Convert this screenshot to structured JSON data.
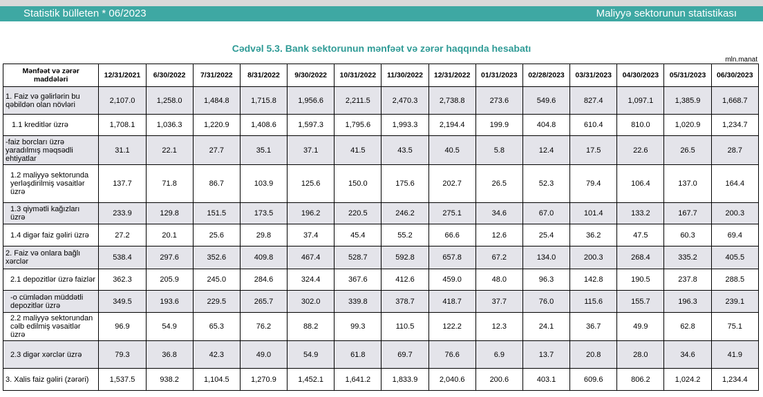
{
  "header": {
    "left": "Statistik bülleten * 06/2023",
    "right": "Maliyyə sektorunun statistikası"
  },
  "title": "Cədvəl 5.3. Bank sektorunun mənfəət və zərər haqqında hesabatı",
  "unit": "mln.manat",
  "table": {
    "columns": [
      "Mənfəət və zərər maddələri",
      "12/31/2021",
      "6/30/2022",
      "7/31/2022",
      "8/31/2022",
      "9/30/2022",
      "10/31/2022",
      "11/30/2022",
      "12/31/2022",
      "01/31/2023",
      "02/28/2023",
      "03/31/2023",
      "04/30/2023",
      "05/31/2023",
      "06/30/2023"
    ],
    "rows": [
      {
        "label": "1. Faiz və gəlirlərin bu qəbildən olan növləri",
        "values": [
          "2,107.0",
          "1,258.0",
          "1,484.8",
          "1,715.8",
          "1,956.6",
          "2,211.5",
          "2,470.3",
          "2,738.8",
          "273.6",
          "549.6",
          "827.4",
          "1,097.1",
          "1,385.9",
          "1,668.7"
        ]
      },
      {
        "label": "1.1 kreditlər üzrə",
        "values": [
          "1,708.1",
          "1,036.3",
          "1,220.9",
          "1,408.6",
          "1,597.3",
          "1,795.6",
          "1,993.3",
          "2,194.4",
          "199.9",
          "404.8",
          "610.4",
          "810.0",
          "1,020.9",
          "1,234.7"
        ]
      },
      {
        "label": "-faiz borcları üzrə yaradılmış məqsədli ehtiyatlar",
        "values": [
          "31.1",
          "22.1",
          "27.7",
          "35.1",
          "37.1",
          "41.5",
          "43.5",
          "40.5",
          "5.8",
          "12.4",
          "17.5",
          "22.6",
          "26.5",
          "28.7"
        ]
      },
      {
        "label": "1.2 maliyyə sektorunda yerləşdirilmiş vəsaitlər üzrə",
        "values": [
          "137.7",
          "71.8",
          "86.7",
          "103.9",
          "125.6",
          "150.0",
          "175.6",
          "202.7",
          "26.5",
          "52.3",
          "79.4",
          "106.4",
          "137.0",
          "164.4"
        ]
      },
      {
        "label": "1.3 qiymətli kağızları üzrə",
        "values": [
          "233.9",
          "129.8",
          "151.5",
          "173.5",
          "196.2",
          "220.5",
          "246.2",
          "275.1",
          "34.6",
          "67.0",
          "101.4",
          "133.2",
          "167.7",
          "200.3"
        ]
      },
      {
        "label": "1.4 digər faiz gəliri üzrə",
        "values": [
          "27.2",
          "20.1",
          "25.6",
          "29.8",
          "37.4",
          "45.4",
          "55.2",
          "66.6",
          "12.6",
          "25.4",
          "36.2",
          "47.5",
          "60.3",
          "69.4"
        ]
      },
      {
        "label": "2. Faiz və onlara bağlı xərclər",
        "values": [
          "538.4",
          "297.6",
          "352.6",
          "409.8",
          "467.4",
          "528.7",
          "592.8",
          "657.8",
          "67.2",
          "134.0",
          "200.3",
          "268.4",
          "335.2",
          "405.5"
        ]
      },
      {
        "label": "2.1 depozitlər üzrə faizlər",
        "values": [
          "362.3",
          "205.9",
          "245.0",
          "284.6",
          "324.4",
          "367.6",
          "412.6",
          "459.0",
          "48.0",
          "96.3",
          "142.8",
          "190.5",
          "237.8",
          "288.5"
        ]
      },
      {
        "label": "-o cümlədən müddətli depozitlər üzrə",
        "values": [
          "349.5",
          "193.6",
          "229.5",
          "265.7",
          "302.0",
          "339.8",
          "378.7",
          "418.7",
          "37.7",
          "76.0",
          "115.6",
          "155.7",
          "196.3",
          "239.1"
        ]
      },
      {
        "label": "2.2 maliyyə sektorundan cəlb edilmiş vəsaitlər üzrə",
        "values": [
          "96.9",
          "54.9",
          "65.3",
          "76.2",
          "88.2",
          "99.3",
          "110.5",
          "122.2",
          "12.3",
          "24.1",
          "36.7",
          "49.9",
          "62.8",
          "75.1"
        ]
      },
      {
        "label": "2.3 digər xərclər üzrə",
        "values": [
          "79.3",
          "36.8",
          "42.3",
          "49.0",
          "54.9",
          "61.8",
          "69.7",
          "76.6",
          "6.9",
          "13.7",
          "20.8",
          "28.0",
          "34.6",
          "41.9"
        ]
      },
      {
        "label": "3. Xalis faiz gəliri (zərəri)",
        "values": [
          "1,537.5",
          "938.2",
          "1,104.5",
          "1,270.9",
          "1,452.1",
          "1,641.2",
          "1,833.9",
          "2,040.6",
          "200.6",
          "403.1",
          "609.6",
          "806.2",
          "1,024.2",
          "1,234.4"
        ]
      }
    ]
  }
}
